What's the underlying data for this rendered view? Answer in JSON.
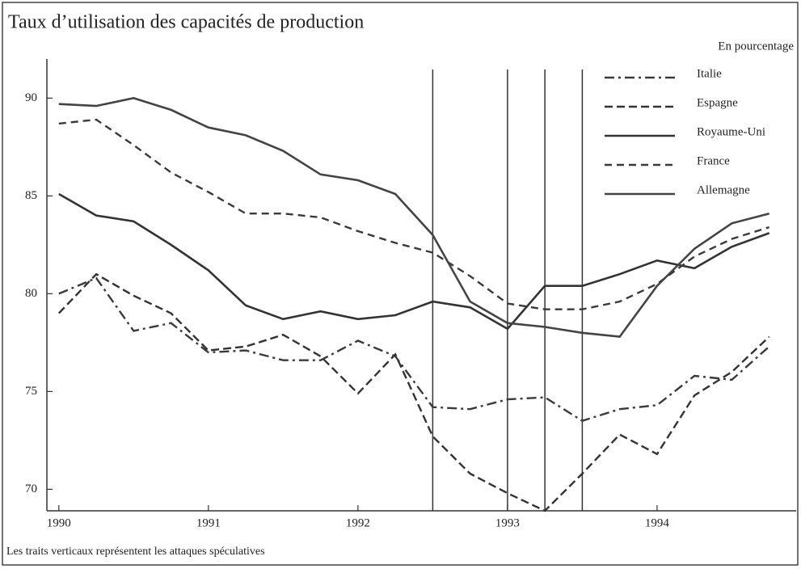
{
  "chart_data": {
    "type": "line",
    "title": "Taux d’utilisation des capacités de production",
    "subtitle": "En pourcentage",
    "note": "Les traits verticaux représentent les attaques spéculatives",
    "x": [
      1990,
      1990.25,
      1990.5,
      1990.75,
      1991,
      1991.25,
      1991.5,
      1991.75,
      1992,
      1992.25,
      1992.5,
      1992.75,
      1993,
      1993.25,
      1993.5,
      1993.75,
      1994,
      1994.25,
      1994.5,
      1994.75
    ],
    "series": [
      {
        "name": "Italie",
        "color": "#3a3a3a",
        "dash": "12 5 3 5",
        "values": [
          80.0,
          80.8,
          78.1,
          78.5,
          77.0,
          77.1,
          76.6,
          76.6,
          77.6,
          76.8,
          74.2,
          74.1,
          74.6,
          74.7,
          73.5,
          74.1,
          74.3,
          75.8,
          75.6,
          77.3
        ]
      },
      {
        "name": "Espagne",
        "color": "#333333",
        "dash": "10 5",
        "values": [
          79.0,
          81.0,
          79.9,
          79.0,
          77.1,
          77.3,
          77.9,
          76.8,
          74.9,
          76.9,
          72.7,
          70.8,
          69.8,
          68.9,
          70.8,
          72.8,
          71.8,
          74.8,
          76.0,
          77.8
        ]
      },
      {
        "name": "Royaume-Uni",
        "color": "#333333",
        "dash": "none",
        "values": [
          85.1,
          84.0,
          83.7,
          82.5,
          81.2,
          79.4,
          78.7,
          79.1,
          78.7,
          78.9,
          79.6,
          79.3,
          78.2,
          80.4,
          80.4,
          81.0,
          81.7,
          81.3,
          82.4,
          83.1
        ]
      },
      {
        "name": "France",
        "color": "#3a3a3a",
        "dash": "9 6",
        "values": [
          88.7,
          88.9,
          87.6,
          86.2,
          85.2,
          84.1,
          84.1,
          83.9,
          83.2,
          82.6,
          82.1,
          80.9,
          79.5,
          79.2,
          79.2,
          79.6,
          80.5,
          81.9,
          82.8,
          83.4
        ]
      },
      {
        "name": "Allemagne",
        "color": "#444444",
        "dash": "none",
        "values": [
          89.7,
          89.6,
          90.0,
          89.4,
          88.5,
          88.1,
          87.3,
          86.1,
          85.8,
          85.1,
          83.0,
          79.6,
          78.5,
          78.3,
          78.0,
          77.8,
          80.4,
          82.3,
          83.6,
          84.1
        ]
      }
    ],
    "vlines": [
      1992.5,
      1993,
      1993.25,
      1993.5
    ],
    "xlim": [
      1989.92,
      1994.93
    ],
    "xticks": [
      1990,
      1991,
      1992,
      1993,
      1994
    ],
    "ylim": [
      68.9,
      92
    ],
    "yticks": [
      70,
      75,
      80,
      85,
      90
    ],
    "grid": false,
    "legend": "upper right"
  }
}
